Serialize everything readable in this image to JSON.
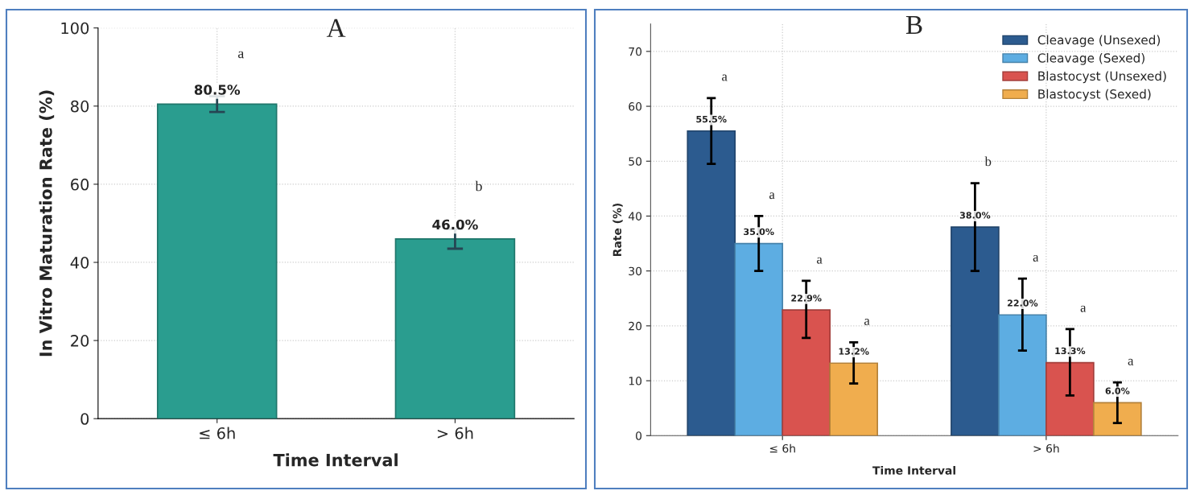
{
  "chart_data": [
    {
      "type": "bar",
      "title": "A",
      "xlabel": "Time Interval",
      "ylabel": "In Vitro Maturation Rate (%)",
      "categories": [
        "≤ 6h",
        "> 6h"
      ],
      "values": [
        80.5,
        46.0
      ],
      "color": "#2a9d8f",
      "errors": [
        2,
        2.5
      ],
      "value_labels": [
        "80.5%",
        "46.0%"
      ],
      "ylim": [
        0,
        100
      ],
      "yticks": [
        0,
        20,
        40,
        60,
        80,
        100
      ],
      "grid": true,
      "legend": false,
      "annotations": [
        "a",
        "b"
      ]
    },
    {
      "type": "bar",
      "title": "B",
      "xlabel": "Time Interval",
      "ylabel": "Rate (%)",
      "categories": [
        "≤ 6h",
        "> 6h"
      ],
      "series": [
        {
          "name": "Cleavage (Unsexed)",
          "color": "#2c5b8f",
          "values": [
            55.5,
            38.0
          ],
          "errors": [
            [
              49.5,
              61.5
            ],
            [
              30.0,
              46.0
            ]
          ],
          "value_labels": [
            "55.5%",
            "38.0%"
          ]
        },
        {
          "name": "Cleavage (Sexed)",
          "color": "#5dade2",
          "values": [
            35.0,
            22.0
          ],
          "errors": [
            [
              30.0,
              40.0
            ],
            [
              15.5,
              28.6
            ]
          ],
          "value_labels": [
            "35.0%",
            "22.0%"
          ]
        },
        {
          "name": "Blastocyst (Unsexed)",
          "color": "#d9534f",
          "values": [
            22.9,
            13.3
          ],
          "errors": [
            [
              17.8,
              28.2
            ],
            [
              7.3,
              19.4
            ]
          ],
          "value_labels": [
            "22.9%",
            "13.3%"
          ]
        },
        {
          "name": "Blastocyst (Sexed)",
          "color": "#f0ad4e",
          "values": [
            13.2,
            6.0
          ],
          "errors": [
            [
              9.5,
              17.0
            ],
            [
              2.3,
              9.7
            ]
          ],
          "value_labels": [
            "13.2%",
            "6.0%"
          ]
        }
      ],
      "ylim": [
        0,
        75
      ],
      "yticks": [
        0,
        10,
        20,
        30,
        40,
        50,
        60,
        70
      ],
      "grid": true,
      "legend": "top right",
      "annotations": [
        "a",
        "a",
        "a",
        "a",
        "b",
        "a",
        "a",
        "a"
      ]
    }
  ]
}
